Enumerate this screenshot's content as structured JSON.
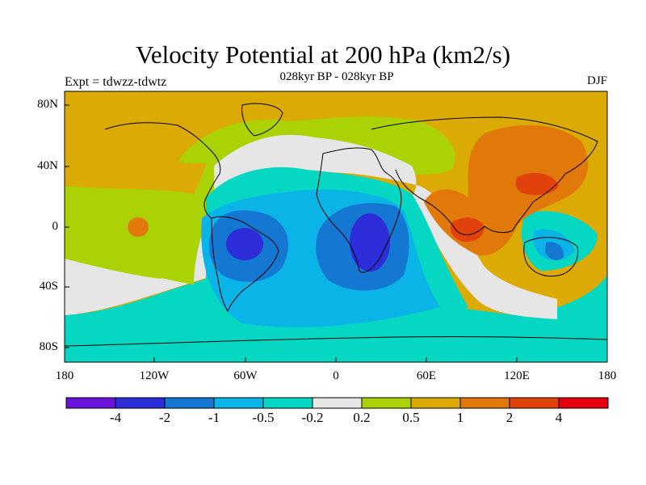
{
  "header": {
    "title": "Velocity Potential at 200 hPa (km2/s)",
    "subtitle": "028kyr BP - 028kyr BP",
    "experiment": "Expt = tdwzz-tdwtz",
    "season": "DJF"
  },
  "map": {
    "lat_labels": [
      "80N",
      "40N",
      "0",
      "40S",
      "80S"
    ],
    "lon_labels": [
      "180",
      "120W",
      "60W",
      "0",
      "60E",
      "120E",
      "180"
    ]
  },
  "colorbar": {
    "labels": [
      "-4",
      "-2",
      "-1",
      "-0.5",
      "-0.2",
      "0.2",
      "0.5",
      "1",
      "2",
      "4"
    ],
    "colors": [
      "#6a14dc",
      "#2c2cd8",
      "#1478d2",
      "#0ab4e6",
      "#05d7c3",
      "#e6e6e6",
      "#aad205",
      "#dcaa05",
      "#e1780a",
      "#e1410a",
      "#e6000f"
    ]
  }
}
